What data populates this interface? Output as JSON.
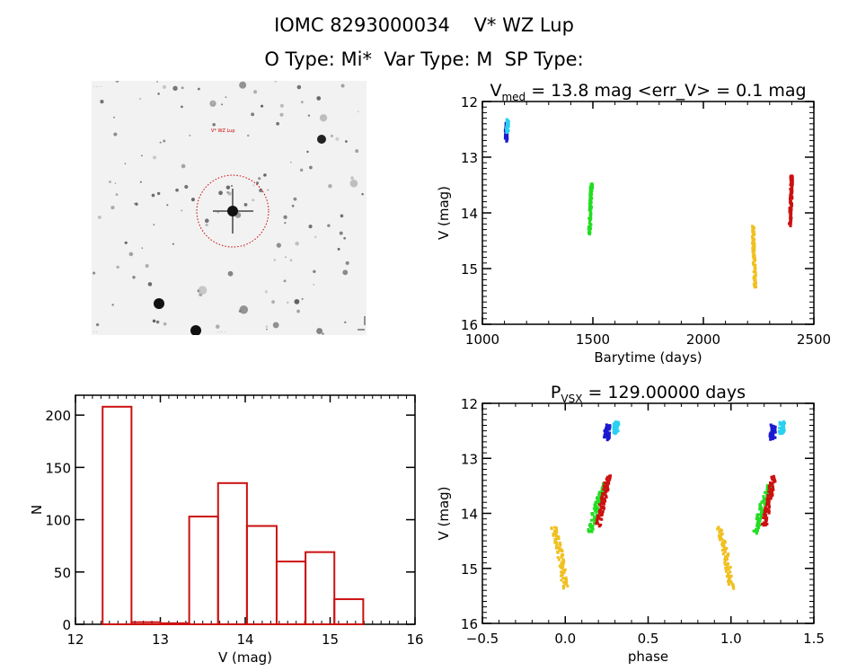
{
  "header": {
    "line1": "IOMC 8293000034    V* WZ Lup",
    "line2": "O Type: Mi*  Var Type: M  SP Type:"
  },
  "image_panel": {
    "description": "finder chart star field",
    "target_label": "V* WZ Lup",
    "circle_color": "#cc0000"
  },
  "colors": {
    "dark_blue": "#1a1ad0",
    "cyan": "#2ad0f0",
    "green": "#22dd22",
    "yellow": "#f0c020",
    "red": "#cc1111",
    "hist": "#cc1111"
  },
  "chart_data": [
    {
      "id": "lightcurve",
      "type": "scatter",
      "title_main": "V",
      "title_sub": "med",
      "title_rest": " = 13.8 mag <err_V> = 0.1 mag",
      "xlabel": "Barytime (days)",
      "ylabel": "V (mag)",
      "xlim": [
        1000,
        2500
      ],
      "ylim": [
        16,
        12
      ],
      "xticks": [
        1000,
        1500,
        2000,
        2500
      ],
      "yticks": [
        12,
        13,
        14,
        15,
        16
      ],
      "series": [
        {
          "name": "season1a",
          "color": "dark_blue",
          "points": [
            [
              1108,
              12.4
            ],
            [
              1108,
              12.7
            ]
          ]
        },
        {
          "name": "season1b",
          "color": "cyan",
          "points": [
            [
              1115,
              12.33
            ],
            [
              1113,
              12.55
            ]
          ]
        },
        {
          "name": "season2",
          "color": "green",
          "points": [
            [
              1495,
              13.47
            ],
            [
              1490,
              13.8
            ],
            [
              1485,
              14.38
            ]
          ]
        },
        {
          "name": "season3",
          "color": "yellow",
          "points": [
            [
              2225,
              14.25
            ],
            [
              2228,
              14.7
            ],
            [
              2235,
              15.35
            ]
          ]
        },
        {
          "name": "season4",
          "color": "red",
          "points": [
            [
              2400,
              13.32
            ],
            [
              2397,
              13.75
            ],
            [
              2393,
              14.22
            ]
          ]
        }
      ]
    },
    {
      "id": "histogram",
      "type": "bar",
      "xlabel": "V (mag)",
      "ylabel": "N",
      "xlim": [
        12,
        16
      ],
      "ylim": [
        0,
        219
      ],
      "xticks": [
        12,
        13,
        14,
        15,
        16
      ],
      "yticks": [
        0,
        50,
        100,
        150,
        200
      ],
      "bin_edges": [
        12.32,
        12.66,
        13.0,
        13.34,
        13.68,
        14.02,
        14.37,
        14.71,
        15.05,
        15.39
      ],
      "values": [
        208,
        2,
        1,
        103,
        135,
        94,
        60,
        69,
        24
      ]
    },
    {
      "id": "phaseplot",
      "type": "scatter",
      "title_main": "P",
      "title_sub": "VSX",
      "title_rest": " = 129.00000 days",
      "xlabel": "phase",
      "ylabel": "V (mag)",
      "xlim": [
        -0.5,
        1.5
      ],
      "ylim": [
        16,
        12
      ],
      "xticks": [
        -0.5,
        0.0,
        0.5,
        1.0,
        1.5
      ],
      "xticklabels": [
        "−0.5",
        "0.0",
        "0.5",
        "1.0",
        "1.5"
      ],
      "yticks": [
        12,
        13,
        14,
        15,
        16
      ],
      "series": [
        {
          "name": "season1a",
          "color": "dark_blue",
          "points": [
            [
              0.255,
              12.4
            ],
            [
              0.25,
              12.65
            ]
          ]
        },
        {
          "name": "season1b",
          "color": "cyan",
          "points": [
            [
              0.31,
              12.33
            ],
            [
              0.305,
              12.55
            ]
          ]
        },
        {
          "name": "season2",
          "color": "green",
          "points": [
            [
              0.24,
              13.47
            ],
            [
              0.19,
              13.85
            ],
            [
              0.15,
              14.35
            ]
          ]
        },
        {
          "name": "season3",
          "color": "yellow",
          "points": [
            [
              -0.07,
              14.25
            ],
            [
              -0.03,
              14.75
            ],
            [
              0.0,
              15.35
            ]
          ]
        },
        {
          "name": "season4",
          "color": "red",
          "points": [
            [
              0.26,
              13.32
            ],
            [
              0.23,
              13.75
            ],
            [
              0.2,
              14.22
            ]
          ]
        }
      ]
    }
  ]
}
